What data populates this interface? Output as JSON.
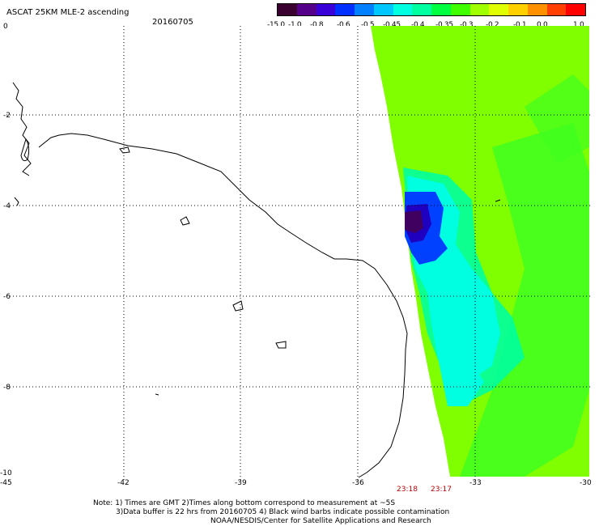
{
  "header": {
    "title": "ASCAT 25KM MLE-2 ascending",
    "date": "20160705"
  },
  "colorbar": {
    "colors": [
      "#3a0030",
      "#55008a",
      "#3a00d8",
      "#0030ff",
      "#0080ff",
      "#00c8ff",
      "#00ffe0",
      "#00ffa0",
      "#00ff40",
      "#40ff00",
      "#a0ff00",
      "#e0ff00",
      "#ffd000",
      "#ff9000",
      "#ff4000",
      "#ff0000"
    ],
    "ticks": [
      "-15.0",
      "-1.0",
      "-0.8",
      "-0.6",
      "-0.5",
      "-0.45",
      "-0.4",
      "-0.35",
      "-0.3",
      "-0.2",
      "-0.1",
      "0.0",
      "1.0"
    ]
  },
  "map": {
    "lat_labels": [
      "0",
      "-2",
      "-4",
      "-6",
      "-8",
      "-10"
    ],
    "lon_labels": [
      "-45",
      "-42",
      "-39",
      "-36",
      "-33",
      "-30"
    ],
    "swath_colors": {
      "background_green": "#80ff00",
      "darker_green": "#40ff20",
      "cyan": "#00ffe0",
      "teal": "#00ffa0",
      "blue": "#0040ff",
      "deep_blue": "#2000c0",
      "purple": "#400060"
    },
    "time_labels": [
      "23:18",
      "23:17"
    ]
  },
  "footer": {
    "line1": "Note: 1) Times are GMT 2)Times along bottom correspond to measurement at ~5S",
    "line2": "3)Data buffer is 22 hrs from 20160705 4) Black wind barbs indicate possible contamination",
    "line3": "NOAA/NESDIS/Center for Satellite Applications and Research"
  }
}
